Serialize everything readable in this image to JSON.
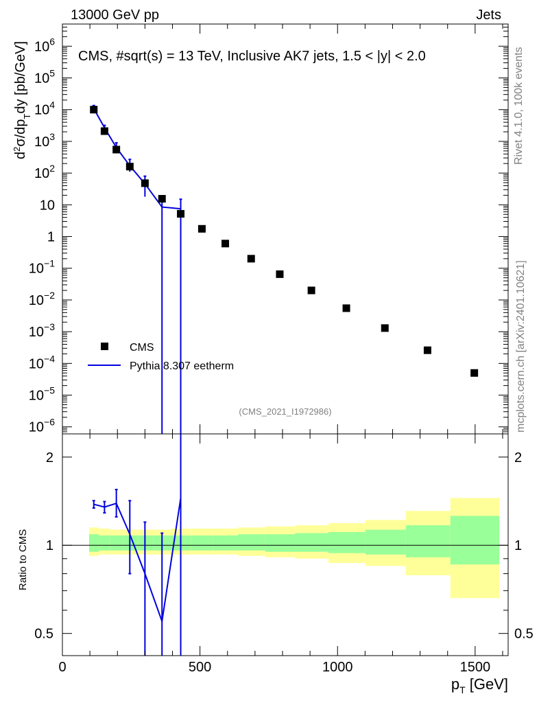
{
  "header": {
    "left": "13000 GeV pp",
    "right": "Jets"
  },
  "side_labels": {
    "rivet": "Rivet 4.1.0,  100k events",
    "mcplots": "mcplots.cern.ch [arXiv:2401.10621]"
  },
  "chart_data": {
    "type": "scatter",
    "title": "CMS, #sqrt(s) = 13 TeV, Inclusive AK7 jets, 1.5 < |y| < 2.0",
    "watermark": "(CMS_2021_I1972986)",
    "xlabel": "p_T [GeV]",
    "xlabel_main": "p",
    "xlabel_sub": "T",
    "xlabel_unit": " [GeV]",
    "xlim": [
      0,
      1620
    ],
    "x_ticks": [
      0,
      500,
      1000,
      1500
    ],
    "x_tick_labels": [
      "0",
      "500",
      "1000",
      "1500"
    ],
    "top_panel": {
      "ylabel": "d²σ/dp_T dy [pb/GeV]",
      "yscale": "log",
      "ylim": [
        6e-07,
        5000000.0
      ],
      "y_ticks": [
        {
          "value": 1000000.0,
          "base": "10",
          "exp": "6"
        },
        {
          "value": 100000.0,
          "base": "10",
          "exp": "5"
        },
        {
          "value": 10000.0,
          "base": "10",
          "exp": "4"
        },
        {
          "value": 1000.0,
          "base": "10",
          "exp": "3"
        },
        {
          "value": 100.0,
          "base": "10",
          "exp": "2"
        },
        {
          "value": 10,
          "base": "10",
          "exp": ""
        },
        {
          "value": 1,
          "base": "1",
          "exp": ""
        },
        {
          "value": 0.1,
          "base": "10",
          "exp": "−1"
        },
        {
          "value": 0.01,
          "base": "10",
          "exp": "−2"
        },
        {
          "value": 0.001,
          "base": "10",
          "exp": "−3"
        },
        {
          "value": 0.0001,
          "base": "10",
          "exp": "−4"
        },
        {
          "value": 1e-05,
          "base": "10",
          "exp": "−5"
        },
        {
          "value": 1e-06,
          "base": "10",
          "exp": "−6"
        }
      ],
      "series": [
        {
          "name": "CMS",
          "style": "markers",
          "color": "#000000",
          "points": [
            {
              "x": 114,
              "y": 10000
            },
            {
              "x": 153,
              "y": 2100
            },
            {
              "x": 196,
              "y": 550
            },
            {
              "x": 245,
              "y": 160
            },
            {
              "x": 300,
              "y": 48
            },
            {
              "x": 362,
              "y": 15.5
            },
            {
              "x": 430,
              "y": 5.2
            },
            {
              "x": 507,
              "y": 1.75
            },
            {
              "x": 592,
              "y": 0.6
            },
            {
              "x": 686,
              "y": 0.2
            },
            {
              "x": 790,
              "y": 0.065
            },
            {
              "x": 905,
              "y": 0.02
            },
            {
              "x": 1032,
              "y": 0.0055
            },
            {
              "x": 1172,
              "y": 0.0013
            },
            {
              "x": 1327,
              "y": 0.00026
            },
            {
              "x": 1497,
              "y": 5e-05
            }
          ]
        },
        {
          "name": "Pythia 8.307 eetherm",
          "style": "line",
          "color": "#0000dd",
          "points": [
            {
              "x": 114,
              "y": 10800,
              "err_lo": 9000,
              "err_hi": 13500
            },
            {
              "x": 153,
              "y": 2700,
              "err_lo": 2300,
              "err_hi": 3200
            },
            {
              "x": 196,
              "y": 640,
              "err_lo": 480,
              "err_hi": 900
            },
            {
              "x": 245,
              "y": 170,
              "err_lo": 110,
              "err_hi": 270
            },
            {
              "x": 300,
              "y": 46,
              "err_lo": 18,
              "err_hi": 80
            },
            {
              "x": 362,
              "y": 8.5,
              "err_lo": 1e-07,
              "err_hi": 16
            },
            {
              "x": 430,
              "y": 7.5,
              "err_lo": 1e-07,
              "err_hi": 15
            }
          ]
        }
      ]
    },
    "bottom_panel": {
      "ylabel": "Ratio to CMS",
      "yscale": "log",
      "ylim": [
        0.42,
        2.4
      ],
      "y_ticks": [
        {
          "value": 2,
          "label": "2"
        },
        {
          "value": 1,
          "label": "1"
        },
        {
          "value": 0.5,
          "label": "0.5"
        }
      ],
      "reference_line": 1,
      "bands": [
        {
          "x0": 97,
          "x1": 132,
          "inner": [
            0.95,
            1.09
          ],
          "outer": [
            0.92,
            1.15
          ]
        },
        {
          "x0": 132,
          "x1": 174,
          "inner": [
            0.96,
            1.08
          ],
          "outer": [
            0.93,
            1.14
          ]
        },
        {
          "x0": 174,
          "x1": 220,
          "inner": [
            0.96,
            1.08
          ],
          "outer": [
            0.93,
            1.13
          ]
        },
        {
          "x0": 220,
          "x1": 272,
          "inner": [
            0.96,
            1.08
          ],
          "outer": [
            0.93,
            1.13
          ]
        },
        {
          "x0": 272,
          "x1": 330,
          "inner": [
            0.96,
            1.08
          ],
          "outer": [
            0.93,
            1.13
          ]
        },
        {
          "x0": 330,
          "x1": 395,
          "inner": [
            0.96,
            1.08
          ],
          "outer": [
            0.93,
            1.13
          ]
        },
        {
          "x0": 395,
          "x1": 468,
          "inner": [
            0.96,
            1.08
          ],
          "outer": [
            0.93,
            1.14
          ]
        },
        {
          "x0": 468,
          "x1": 548,
          "inner": [
            0.96,
            1.08
          ],
          "outer": [
            0.93,
            1.14
          ]
        },
        {
          "x0": 548,
          "x1": 638,
          "inner": [
            0.96,
            1.08
          ],
          "outer": [
            0.93,
            1.14
          ]
        },
        {
          "x0": 638,
          "x1": 737,
          "inner": [
            0.96,
            1.09
          ],
          "outer": [
            0.92,
            1.15
          ]
        },
        {
          "x0": 737,
          "x1": 846,
          "inner": [
            0.95,
            1.09
          ],
          "outer": [
            0.91,
            1.16
          ]
        },
        {
          "x0": 846,
          "x1": 967,
          "inner": [
            0.95,
            1.1
          ],
          "outer": [
            0.9,
            1.17
          ]
        },
        {
          "x0": 967,
          "x1": 1101,
          "inner": [
            0.94,
            1.11
          ],
          "outer": [
            0.87,
            1.19
          ]
        },
        {
          "x0": 1101,
          "x1": 1248,
          "inner": [
            0.93,
            1.13
          ],
          "outer": [
            0.85,
            1.22
          ]
        },
        {
          "x0": 1248,
          "x1": 1410,
          "inner": [
            0.91,
            1.17
          ],
          "outer": [
            0.79,
            1.31
          ]
        },
        {
          "x0": 1410,
          "x1": 1588,
          "inner": [
            0.86,
            1.26
          ],
          "outer": [
            0.66,
            1.45
          ]
        }
      ],
      "ratio_series": {
        "name": "Pythia 8.307 eetherm",
        "color": "#0000dd",
        "points": [
          {
            "x": 114,
            "y": 1.38,
            "err_lo": 1.34,
            "err_hi": 1.42
          },
          {
            "x": 153,
            "y": 1.35,
            "err_lo": 1.29,
            "err_hi": 1.41
          },
          {
            "x": 196,
            "y": 1.39,
            "err_lo": 1.25,
            "err_hi": 1.55
          },
          {
            "x": 245,
            "y": 1.09,
            "err_lo": 0.8,
            "err_hi": 1.42
          },
          {
            "x": 300,
            "y": 0.8,
            "err_lo": 0.35,
            "err_hi": 1.2
          },
          {
            "x": 362,
            "y": 0.55,
            "err_lo": 0.35,
            "err_hi": 1.1
          },
          {
            "x": 430,
            "y": 1.45,
            "err_lo": 0.35,
            "err_hi": 3.0
          }
        ]
      }
    },
    "legend": {
      "position": "lower-left",
      "entries": [
        {
          "label": "CMS",
          "marker": "square",
          "color": "#000000"
        },
        {
          "label": "Pythia 8.307 eetherm",
          "marker": "line",
          "color": "#0000dd"
        }
      ]
    },
    "band_colors": {
      "inner": "#99ff99",
      "outer": "#ffff99"
    }
  }
}
